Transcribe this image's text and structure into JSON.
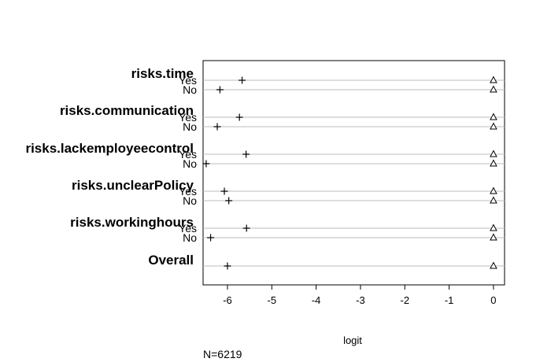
{
  "chart_data": {
    "type": "scatter",
    "xlabel": "logit",
    "note": "N=6219",
    "xlim": [
      -6.55,
      0.25
    ],
    "x_ticks": [
      {
        "value": -6,
        "label": "-6"
      },
      {
        "value": -5,
        "label": "-5"
      },
      {
        "value": -4,
        "label": "-4"
      },
      {
        "value": -3,
        "label": "-3"
      },
      {
        "value": -2,
        "label": "-2"
      },
      {
        "value": -1,
        "label": "-1"
      },
      {
        "value": 0,
        "label": "0"
      }
    ],
    "markers": {
      "plus": "+",
      "triangle": "triangle"
    },
    "groups": [
      {
        "label": "risks.time",
        "rows": [
          {
            "label": "Yes",
            "plus": -5.67,
            "triangle": 0.0
          },
          {
            "label": "No",
            "plus": -6.17,
            "triangle": 0.0
          }
        ]
      },
      {
        "label": "risks.communication",
        "rows": [
          {
            "label": "Yes",
            "plus": -5.73,
            "triangle": 0.0
          },
          {
            "label": "No",
            "plus": -6.23,
            "triangle": 0.0
          }
        ]
      },
      {
        "label": "risks.lackemployeecontrol",
        "rows": [
          {
            "label": "Yes",
            "plus": -5.58,
            "triangle": 0.0
          },
          {
            "label": "No",
            "plus": -6.48,
            "triangle": 0.0
          }
        ]
      },
      {
        "label": "risks.unclearPolicy",
        "rows": [
          {
            "label": "Yes",
            "plus": -6.07,
            "triangle": 0.0
          },
          {
            "label": "No",
            "plus": -5.97,
            "triangle": 0.0
          }
        ]
      },
      {
        "label": "risks.workinghours",
        "rows": [
          {
            "label": "Yes",
            "plus": -5.57,
            "triangle": 0.0
          },
          {
            "label": "No",
            "plus": -6.38,
            "triangle": 0.0
          }
        ]
      },
      {
        "label": "Overall",
        "rows": [
          {
            "label": "",
            "plus": -6.0,
            "triangle": 0.0
          }
        ]
      }
    ]
  }
}
